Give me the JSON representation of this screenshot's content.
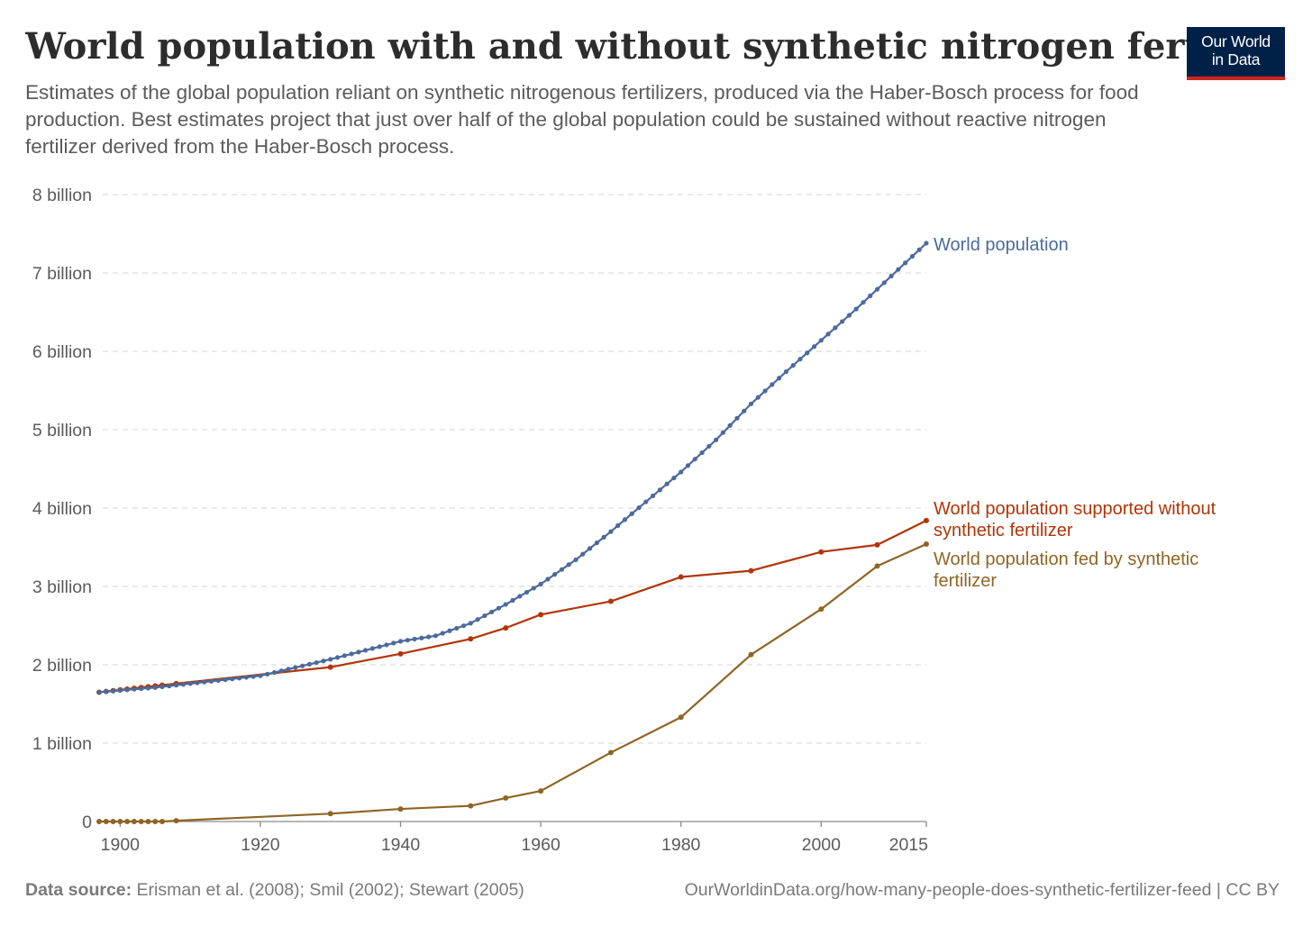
{
  "header": {
    "title": "World population with and without synthetic nitrogen fertilizers",
    "subtitle": "Estimates of the global population reliant on synthetic nitrogenous fertilizers, produced via the Haber-Bosch process for food production. Best estimates project that just over half of the global population could be sustained without reactive nitrogen fertilizer derived from the Haber-Bosch process.",
    "logo_line1": "Our World",
    "logo_line2": "in Data"
  },
  "footer": {
    "source_label": "Data source:",
    "source_text": " Erisman et al. (2008); Smil (2002); Stewart (2005)",
    "url": "OurWorldinData.org/how-many-people-does-synthetic-fertilizer-feed | CC BY"
  },
  "colors": {
    "world": "#4c6a9c",
    "without": "#b13507",
    "fed": "#8f6526",
    "grid": "#dddddd",
    "axis": "#8a8a8a"
  },
  "chart_data": {
    "type": "line",
    "title": "World population with and without synthetic nitrogen fertilizers",
    "xlabel": "",
    "ylabel": "",
    "xlim": [
      1897,
      2015
    ],
    "ylim": [
      0,
      8000000000
    ],
    "grid": true,
    "legend": "inline-right",
    "x_ticks": [
      {
        "value": 1900,
        "label": "1900"
      },
      {
        "value": 1920,
        "label": "1920"
      },
      {
        "value": 1940,
        "label": "1940"
      },
      {
        "value": 1960,
        "label": "1960"
      },
      {
        "value": 1980,
        "label": "1980"
      },
      {
        "value": 2000,
        "label": "2000"
      },
      {
        "value": 2015,
        "label": "2015"
      }
    ],
    "y_ticks": [
      {
        "value": 0,
        "label": "0"
      },
      {
        "value": 1000000000,
        "label": "1 billion"
      },
      {
        "value": 2000000000,
        "label": "2 billion"
      },
      {
        "value": 3000000000,
        "label": "3 billion"
      },
      {
        "value": 4000000000,
        "label": "4 billion"
      },
      {
        "value": 5000000000,
        "label": "5 billion"
      },
      {
        "value": 6000000000,
        "label": "6 billion"
      },
      {
        "value": 7000000000,
        "label": "7 billion"
      },
      {
        "value": 8000000000,
        "label": "8 billion"
      }
    ],
    "series": [
      {
        "name": "World population",
        "label_lines": [
          "World population"
        ],
        "color_key": "world",
        "marker_radius": 2.6,
        "anchors": [
          [
            1897,
            1.65
          ],
          [
            1905,
            1.71
          ],
          [
            1910,
            1.76
          ],
          [
            1920,
            1.86
          ],
          [
            1930,
            2.07
          ],
          [
            1940,
            2.3
          ],
          [
            1945,
            2.37
          ],
          [
            1950,
            2.53
          ],
          [
            1955,
            2.77
          ],
          [
            1960,
            3.03
          ],
          [
            1965,
            3.34
          ],
          [
            1970,
            3.7
          ],
          [
            1975,
            4.08
          ],
          [
            1980,
            4.46
          ],
          [
            1985,
            4.87
          ],
          [
            1990,
            5.33
          ],
          [
            1995,
            5.74
          ],
          [
            2000,
            6.14
          ],
          [
            2005,
            6.54
          ],
          [
            2010,
            6.96
          ],
          [
            2015,
            7.38
          ]
        ],
        "annual": true
      },
      {
        "name": "World population supported without synthetic fertilizer",
        "label_lines": [
          "World population supported without",
          "synthetic fertilizer"
        ],
        "color_key": "without",
        "marker_radius": 3,
        "points": [
          [
            1897,
            1.65
          ],
          [
            1898,
            1.66
          ],
          [
            1899,
            1.67
          ],
          [
            1900,
            1.68
          ],
          [
            1901,
            1.69
          ],
          [
            1902,
            1.7
          ],
          [
            1903,
            1.71
          ],
          [
            1904,
            1.72
          ],
          [
            1905,
            1.73
          ],
          [
            1906,
            1.74
          ],
          [
            1908,
            1.76
          ],
          [
            1930,
            1.97
          ],
          [
            1940,
            2.14
          ],
          [
            1950,
            2.33
          ],
          [
            1955,
            2.47
          ],
          [
            1960,
            2.64
          ],
          [
            1970,
            2.81
          ],
          [
            1980,
            3.12
          ],
          [
            1990,
            3.2
          ],
          [
            2000,
            3.44
          ],
          [
            2008,
            3.53
          ],
          [
            2015,
            3.84
          ]
        ]
      },
      {
        "name": "World population fed by synthetic fertilizer",
        "label_lines": [
          "World population fed by synthetic",
          "fertilizer"
        ],
        "color_key": "fed",
        "marker_radius": 3,
        "points": [
          [
            1897,
            0.0
          ],
          [
            1898,
            0.0
          ],
          [
            1899,
            0.0
          ],
          [
            1900,
            0.0
          ],
          [
            1901,
            0.0
          ],
          [
            1902,
            0.0
          ],
          [
            1903,
            0.0
          ],
          [
            1904,
            0.0
          ],
          [
            1905,
            0.0
          ],
          [
            1906,
            0.0
          ],
          [
            1908,
            0.01
          ],
          [
            1930,
            0.1
          ],
          [
            1940,
            0.16
          ],
          [
            1950,
            0.2
          ],
          [
            1955,
            0.3
          ],
          [
            1960,
            0.39
          ],
          [
            1970,
            0.88
          ],
          [
            1980,
            1.33
          ],
          [
            1990,
            2.13
          ],
          [
            2000,
            2.71
          ],
          [
            2008,
            3.26
          ],
          [
            2015,
            3.54
          ]
        ]
      }
    ],
    "value_unit": "billion"
  }
}
